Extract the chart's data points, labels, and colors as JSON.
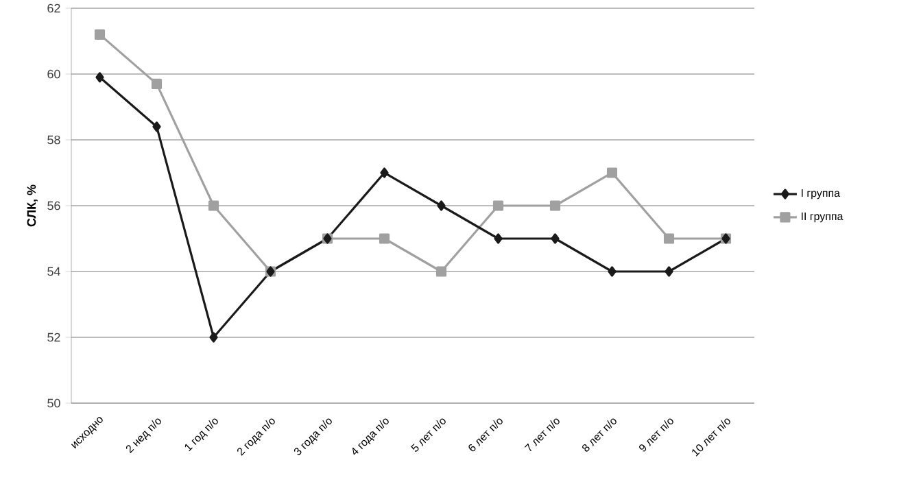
{
  "chart_data": {
    "type": "line",
    "ylabel": "СЛК, %",
    "categories": [
      "исходно",
      "2 нед п/о",
      "1 год п/о",
      "2 года п/о",
      "3 года п/о",
      "4 года п/о",
      "5 лет п/о",
      "6 лет п/о",
      "7 лет п/о",
      "8 лет п/о",
      "9 лет п/о",
      "10 лет п/о"
    ],
    "series": [
      {
        "name": "I группа",
        "color": "#1a1a1a",
        "marker": "diamond",
        "values": [
          59.9,
          58.4,
          52,
          54,
          55,
          57,
          56,
          55,
          55,
          54,
          54,
          55
        ]
      },
      {
        "name": "II группа",
        "color": "#a0a0a0",
        "marker": "square",
        "values": [
          61.2,
          59.7,
          56,
          54,
          55,
          55,
          54,
          56,
          56,
          57,
          55,
          55
        ]
      }
    ],
    "ylim": [
      50,
      62
    ],
    "yticks": [
      50,
      52,
      54,
      56,
      58,
      60,
      62
    ],
    "grid": "y",
    "legend": "right"
  }
}
